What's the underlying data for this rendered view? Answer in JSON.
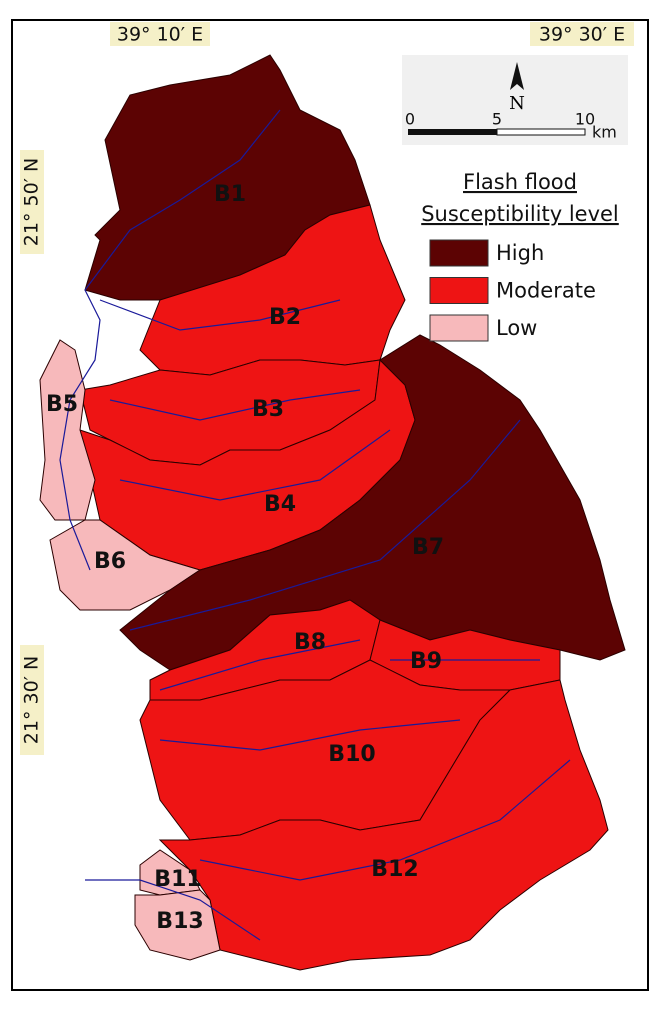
{
  "coordinates": {
    "top": [
      "39° 10′ E",
      "39° 30′ E"
    ],
    "left": [
      "21° 50′ N",
      "21° 30′ N"
    ]
  },
  "scale": {
    "north": "N",
    "ticks": [
      "0",
      "5",
      "10"
    ],
    "unit": "km"
  },
  "legend": {
    "title": [
      "Flash flood",
      "Susceptibility level"
    ],
    "items": [
      {
        "label": "High",
        "color": "#5c0303"
      },
      {
        "label": "Moderate",
        "color": "#ee1414"
      },
      {
        "label": "Low",
        "color": "#f7b9bb"
      }
    ]
  },
  "basins": [
    {
      "label": "B1",
      "susceptibility": "High"
    },
    {
      "label": "B2",
      "susceptibility": "Moderate"
    },
    {
      "label": "B3",
      "susceptibility": "Moderate"
    },
    {
      "label": "B4",
      "susceptibility": "Moderate"
    },
    {
      "label": "B5",
      "susceptibility": "Low"
    },
    {
      "label": "B6",
      "susceptibility": "Low"
    },
    {
      "label": "B7",
      "susceptibility": "High"
    },
    {
      "label": "B8",
      "susceptibility": "Moderate"
    },
    {
      "label": "B9",
      "susceptibility": "Moderate"
    },
    {
      "label": "B10",
      "susceptibility": "Moderate"
    },
    {
      "label": "B11",
      "susceptibility": "Low"
    },
    {
      "label": "B12",
      "susceptibility": "Moderate"
    },
    {
      "label": "B13",
      "susceptibility": "Low"
    }
  ]
}
